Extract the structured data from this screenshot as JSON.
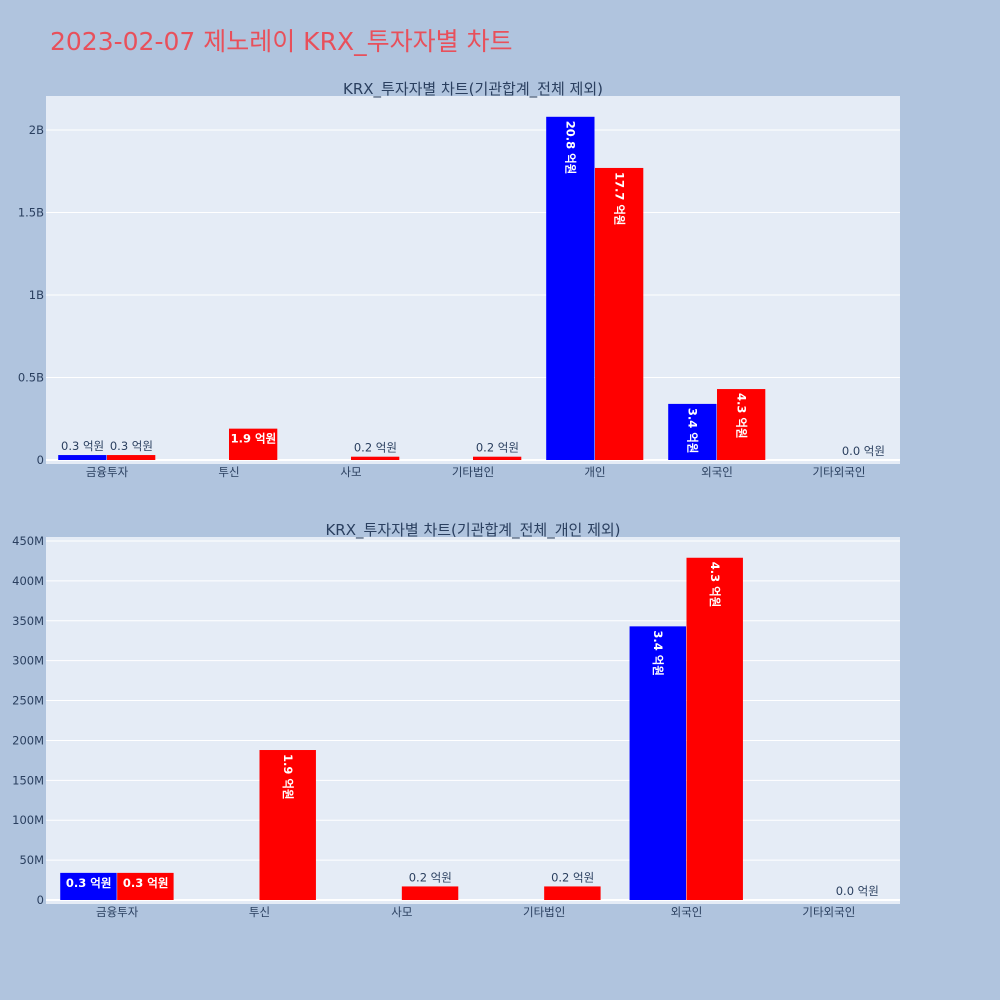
{
  "title": "2023-02-07 제노레이 KRX_투자자별 차트",
  "colors": {
    "page_bg": "#b0c4de",
    "plot_bg": "#e5ecf6",
    "title": "#e8505b",
    "series_1": "#0000ff",
    "series_2": "#ff0000",
    "text": "#2a3f5f"
  },
  "chart_data": [
    {
      "type": "bar",
      "title": "KRX_투자자별 차트(기관합계_전체 제외)",
      "categories": [
        "금융투자",
        "투신",
        "사모",
        "기타법인",
        "개인",
        "외국인",
        "기타외국인"
      ],
      "series": [
        {
          "color": "#0000ff",
          "values": [
            30000000,
            0,
            0,
            0,
            2080000000,
            340000000,
            0
          ],
          "labels": [
            "0.3 억원",
            "",
            "",
            "",
            "20.8 억원",
            "3.4 억원",
            ""
          ]
        },
        {
          "color": "#ff0000",
          "values": [
            30000000,
            190000000,
            20000000,
            20000000,
            1770000000,
            430000000,
            0
          ],
          "labels": [
            "0.3 억원",
            "1.9 억원",
            "0.2 억원",
            "0.2 억원",
            "17.7 억원",
            "4.3 억원",
            "0.0 억원"
          ]
        }
      ],
      "ylim": [
        0,
        2200000000
      ],
      "yticks": [
        {
          "value": 0,
          "label": "0"
        },
        {
          "value": 500000000,
          "label": "0.5B"
        },
        {
          "value": 1000000000,
          "label": "1B"
        },
        {
          "value": 1500000000,
          "label": "1.5B"
        },
        {
          "value": 2000000000,
          "label": "2B"
        }
      ],
      "grid": true
    },
    {
      "type": "bar",
      "title": "KRX_투자자별 차트(기관합계_전체_개인 제외)",
      "categories": [
        "금융투자",
        "투신",
        "사모",
        "기타법인",
        "외국인",
        "기타외국인"
      ],
      "series": [
        {
          "color": "#0000ff",
          "values": [
            34000000,
            0,
            0,
            0,
            343000000,
            0
          ],
          "labels": [
            "0.3 억원",
            "",
            "",
            "",
            "3.4 억원",
            ""
          ]
        },
        {
          "color": "#ff0000",
          "values": [
            34000000,
            188000000,
            17000000,
            17000000,
            429000000,
            0
          ],
          "labels": [
            "0.3 억원",
            "1.9 억원",
            "0.2 억원",
            "0.2 억원",
            "4.3 억원",
            "0.0 억원"
          ]
        }
      ],
      "ylim": [
        0,
        455000000
      ],
      "yticks": [
        {
          "value": 0,
          "label": "0"
        },
        {
          "value": 50000000,
          "label": "50M"
        },
        {
          "value": 100000000,
          "label": "100M"
        },
        {
          "value": 150000000,
          "label": "150M"
        },
        {
          "value": 200000000,
          "label": "200M"
        },
        {
          "value": 250000000,
          "label": "250M"
        },
        {
          "value": 300000000,
          "label": "300M"
        },
        {
          "value": 350000000,
          "label": "350M"
        },
        {
          "value": 400000000,
          "label": "400M"
        },
        {
          "value": 450000000,
          "label": "450M"
        }
      ],
      "grid": true
    }
  ]
}
